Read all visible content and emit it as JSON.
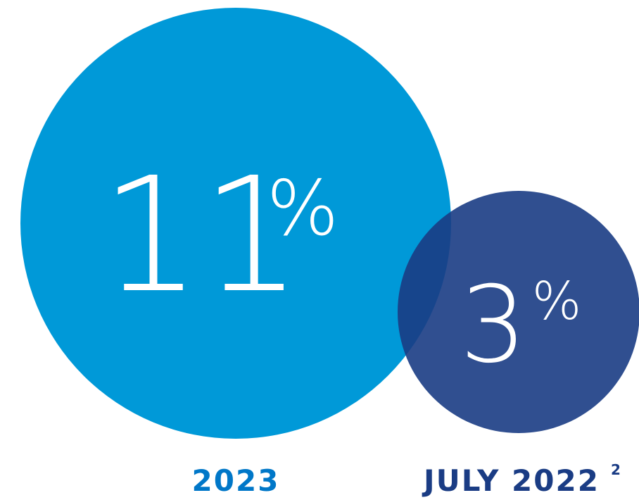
{
  "chart_data": {
    "type": "bubble",
    "series": [
      {
        "label": "2023",
        "label_superscript": "",
        "value": 11,
        "value_text": "11",
        "unit": "%",
        "fill_color": "#0099d8",
        "label_color": "#0077c8"
      },
      {
        "label": "JULY 2022",
        "label_superscript": "2",
        "value": 3,
        "value_text": "3",
        "unit": "%",
        "fill_color": "#1a3c84",
        "label_color": "#1a3c84"
      }
    ]
  }
}
